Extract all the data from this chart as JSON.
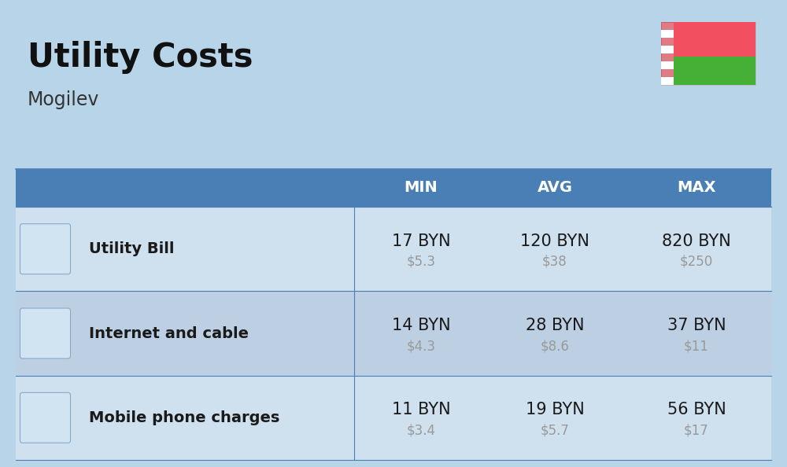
{
  "title": "Utility Costs",
  "subtitle": "Mogilev",
  "bg_color": "#b8d4e8",
  "header_bg": "#4a7fb5",
  "header_text_color": "#ffffff",
  "row_bg_even": "#cfe0ef",
  "row_bg_odd": "#bdd0e3",
  "divider_color": "#4a7fb5",
  "cell_text_color": "#1a1a1a",
  "usd_text_color": "#999999",
  "rows": [
    {
      "label": "Utility Bill",
      "min_byn": "17 BYN",
      "min_usd": "$5.3",
      "avg_byn": "120 BYN",
      "avg_usd": "$38",
      "max_byn": "820 BYN",
      "max_usd": "$250"
    },
    {
      "label": "Internet and cable",
      "min_byn": "14 BYN",
      "min_usd": "$4.3",
      "avg_byn": "28 BYN",
      "avg_usd": "$8.6",
      "max_byn": "37 BYN",
      "max_usd": "$11"
    },
    {
      "label": "Mobile phone charges",
      "min_byn": "11 BYN",
      "min_usd": "$3.4",
      "avg_byn": "19 BYN",
      "avg_usd": "$5.7",
      "max_byn": "56 BYN",
      "max_usd": "$17"
    }
  ],
  "title_fontsize": 30,
  "subtitle_fontsize": 17,
  "header_fontsize": 14,
  "label_fontsize": 14,
  "value_fontsize": 15,
  "usd_fontsize": 12,
  "flag_red": "#f25060",
  "flag_green": "#45b035",
  "flag_white": "#ffffff",
  "flag_ornament": "#cc2233"
}
